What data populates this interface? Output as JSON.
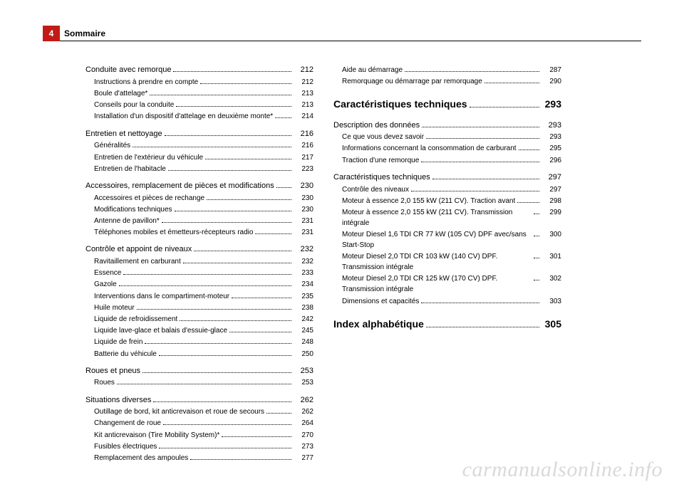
{
  "page_number": "4",
  "header_title": "Sommaire",
  "watermark": "carmanualsonline.info",
  "columns": [
    {
      "groups": [
        {
          "section": {
            "label": "Conduite avec remorque",
            "page": "212"
          },
          "subs": [
            {
              "label": "Instructions à prendre en compte",
              "page": "212"
            },
            {
              "label": "Boule d'attelage*",
              "page": "213"
            },
            {
              "label": "Conseils pour la conduite",
              "page": "213"
            },
            {
              "label": "Installation d'un dispositif d'attelage en deuxième monte*",
              "page": "214"
            }
          ]
        },
        {
          "section": {
            "label": "Entretien et nettoyage",
            "page": "216"
          },
          "subs": [
            {
              "label": "Généralités",
              "page": "216"
            },
            {
              "label": "Entretien de l'extérieur du véhicule",
              "page": "217"
            },
            {
              "label": "Entretien de l'habitacle",
              "page": "223"
            }
          ]
        },
        {
          "section": {
            "label": "Accessoires, remplacement de pièces et modifications",
            "page": "230"
          },
          "subs": [
            {
              "label": "Accessoires et pièces de rechange",
              "page": "230"
            },
            {
              "label": "Modifications techniques",
              "page": "230"
            },
            {
              "label": "Antenne de pavillon*",
              "page": "231"
            },
            {
              "label": "Téléphones mobiles et émetteurs-récepteurs radio",
              "page": "231"
            }
          ]
        },
        {
          "section": {
            "label": "Contrôle et appoint de niveaux",
            "page": "232"
          },
          "subs": [
            {
              "label": "Ravitaillement en carburant",
              "page": "232"
            },
            {
              "label": "Essence",
              "page": "233"
            },
            {
              "label": "Gazole",
              "page": "234"
            },
            {
              "label": "Interventions dans le compartiment-moteur",
              "page": "235"
            },
            {
              "label": "Huile moteur",
              "page": "238"
            },
            {
              "label": "Liquide de refroidissement",
              "page": "242"
            },
            {
              "label": "Liquide lave-glace et balais d'essuie-glace",
              "page": "245"
            },
            {
              "label": "Liquide de frein",
              "page": "248"
            },
            {
              "label": "Batterie du véhicule",
              "page": "250"
            }
          ]
        },
        {
          "section": {
            "label": "Roues et pneus",
            "page": "253"
          },
          "subs": [
            {
              "label": "Roues",
              "page": "253"
            }
          ]
        },
        {
          "section": {
            "label": "Situations diverses",
            "page": "262"
          },
          "subs": [
            {
              "label": "Outillage de bord, kit anticrevaison et roue de secours",
              "page": "262"
            },
            {
              "label": "Changement de roue",
              "page": "264"
            },
            {
              "label": "Kit anticrevaison (Tire Mobility System)*",
              "page": "270"
            },
            {
              "label": "Fusibles électriques",
              "page": "273"
            },
            {
              "label": "Remplacement des ampoules",
              "page": "277"
            }
          ]
        }
      ]
    },
    {
      "leading_subs": [
        {
          "label": "Aide au démarrage",
          "page": "287"
        },
        {
          "label": "Remorquage ou démarrage par remorquage",
          "page": "290"
        }
      ],
      "chapters": [
        {
          "title": {
            "label": "Caractéristiques techniques",
            "page": "293"
          },
          "groups": [
            {
              "section": {
                "label": "Description des données",
                "page": "293"
              },
              "subs": [
                {
                  "label": "Ce que vous devez savoir",
                  "page": "293"
                },
                {
                  "label": "Informations concernant la consommation de carburant",
                  "page": "295"
                },
                {
                  "label": "Traction d'une remorque",
                  "page": "296"
                }
              ]
            },
            {
              "section": {
                "label": "Caractéristiques techniques",
                "page": "297"
              },
              "subs": [
                {
                  "label": "Contrôle des niveaux",
                  "page": "297"
                },
                {
                  "label": "Moteur à essence 2,0 155 kW (211 CV). Traction avant",
                  "page": "298"
                },
                {
                  "label": "Moteur à essence 2,0 155 kW (211 CV). Transmission intégrale",
                  "page": "299"
                },
                {
                  "label": "Moteur Diesel 1,6 TDI CR 77 kW (105 CV) DPF avec/sans Start-Stop",
                  "page": "300"
                },
                {
                  "label": "Moteur Diesel 2,0 TDI CR 103 kW (140 CV) DPF. Transmission intégrale",
                  "page": "301"
                },
                {
                  "label": "Moteur Diesel 2,0 TDI CR 125 kW (170 CV) DPF. Transmission intégrale",
                  "page": "302"
                },
                {
                  "label": "Dimensions et capacités",
                  "page": "303"
                }
              ]
            }
          ]
        },
        {
          "title": {
            "label": "Index alphabétique",
            "page": "305"
          },
          "groups": []
        }
      ]
    }
  ]
}
